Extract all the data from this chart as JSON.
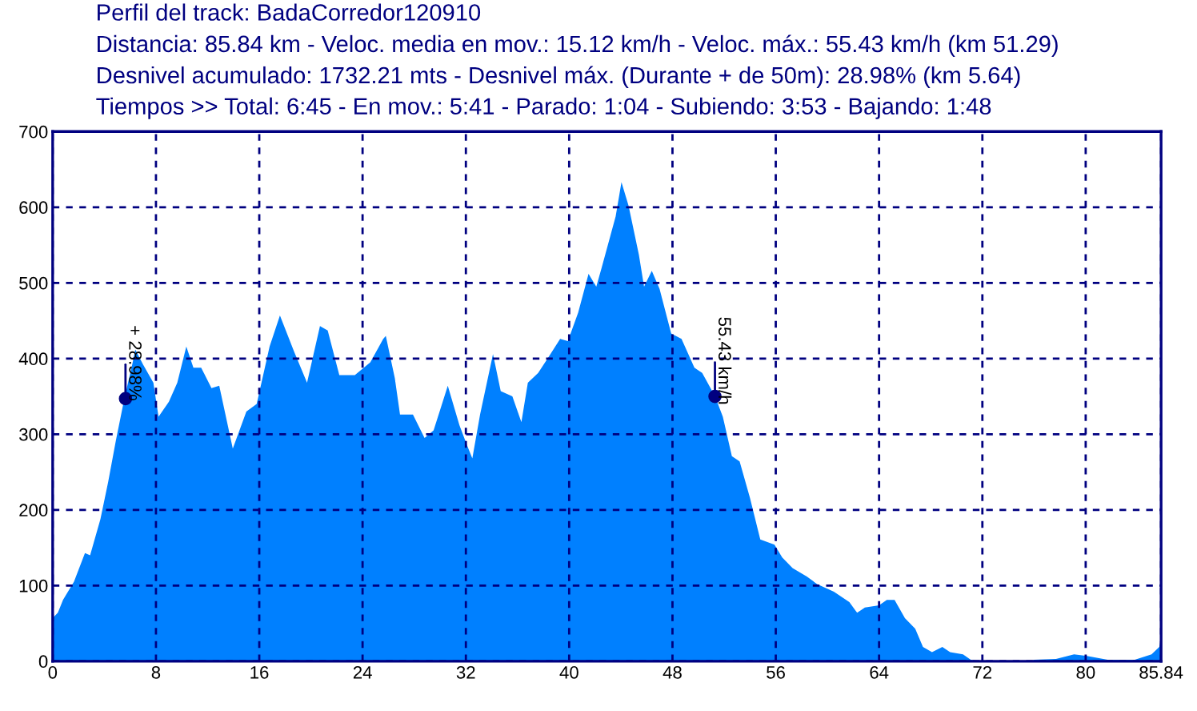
{
  "chart_data": {
    "type": "area",
    "title": "Perfil del track: BadaCorredor120910",
    "subtitle": "Distancia: 85.84 km - Veloc. media en mov.: 15.12 km/h - Veloc. máx.: 55.43 km/h (km 51.29)\nDesnivel acumulado: 1732.21 mts - Desnivel máx. (Durante + de 50m): 28.98% (km 5.64)\nTiempos >> Total: 6:45 - En mov.: 5:41 - Parado: 1:04 - Subiendo: 3:53 - Bajando: 1:48",
    "xlim": [
      0,
      85.84
    ],
    "ylim": [
      0,
      700
    ],
    "xticks": [
      0,
      8,
      16,
      24,
      32,
      40,
      48,
      56,
      64,
      72,
      80,
      85.84
    ],
    "yticks": [
      0,
      100,
      200,
      300,
      400,
      500,
      600,
      700
    ],
    "grid": true,
    "series": [
      {
        "color": "#0080ff",
        "x": [
          0,
          0.4,
          0.8,
          1.65,
          2.5,
          2.9,
          3.7,
          4.3,
          4.9,
          5.55,
          6.2,
          6.4,
          7.0,
          7.8,
          8.2,
          9.0,
          9.65,
          10.35,
          10.9,
          11.5,
          12.3,
          12.9,
          13.95,
          15.0,
          15.8,
          16.8,
          17.6,
          18.7,
          19.7,
          20.7,
          21.3,
          22.2,
          23.4,
          24.6,
          25.6,
          25.8,
          26.5,
          26.9,
          27.9,
          28.8,
          29.5,
          30.6,
          31.5,
          32.1,
          32.5,
          33.1,
          34.1,
          34.7,
          35.6,
          36.3,
          36.8,
          37.6,
          38.4,
          39.3,
          39.9,
          40.7,
          41.5,
          42.1,
          42.5,
          43.6,
          44.05,
          44.6,
          45.4,
          45.8,
          46.4,
          47.0,
          47.9,
          48.7,
          49.7,
          50.3,
          51.3,
          51.9,
          52.6,
          53.2,
          54.0,
          54.8,
          55.9,
          56.5,
          57.3,
          58.4,
          59.2,
          60.5,
          61.7,
          62.3,
          62.9,
          64.0,
          64.6,
          65.2,
          66.0,
          66.8,
          67.4,
          68.1,
          68.9,
          69.5,
          70.5,
          71.1,
          72.0,
          75.8,
          76.0,
          77.7,
          79.1,
          80.1,
          81.7,
          83.8,
          85.1,
          85.7,
          85.84
        ],
        "values": [
          57,
          64,
          81,
          105,
          143,
          140,
          188,
          237,
          292,
          347,
          395,
          412,
          392,
          368,
          323,
          343,
          368,
          416,
          388,
          388,
          361,
          364,
          281,
          330,
          340,
          416,
          457,
          409,
          368,
          443,
          437,
          378,
          378,
          395,
          426,
          430,
          374,
          326,
          326,
          295,
          305,
          364,
          312,
          285,
          268,
          326,
          406,
          357,
          350,
          316,
          368,
          381,
          402,
          426,
          423,
          461,
          512,
          495,
          519,
          588,
          633,
          602,
          537,
          495,
          516,
          492,
          433,
          426,
          388,
          381,
          350,
          323,
          271,
          264,
          216,
          161,
          154,
          137,
          123,
          112,
          102,
          92,
          78,
          64,
          71,
          74,
          81,
          81,
          57,
          43,
          19,
          12,
          19,
          12,
          9,
          2,
          0,
          0,
          2,
          3,
          9,
          7,
          2,
          2,
          9,
          19,
          30
        ]
      },
      {
        "type": "scatter",
        "color": "#000080",
        "x": [
          5.64,
          51.29
        ],
        "values": [
          347,
          350
        ]
      }
    ],
    "annotations": [
      {
        "text": "+ 28.98%",
        "x": 5.64,
        "y": 347
      },
      {
        "text": "55.43 km/h",
        "x": 51.29,
        "y": 350
      }
    ]
  }
}
